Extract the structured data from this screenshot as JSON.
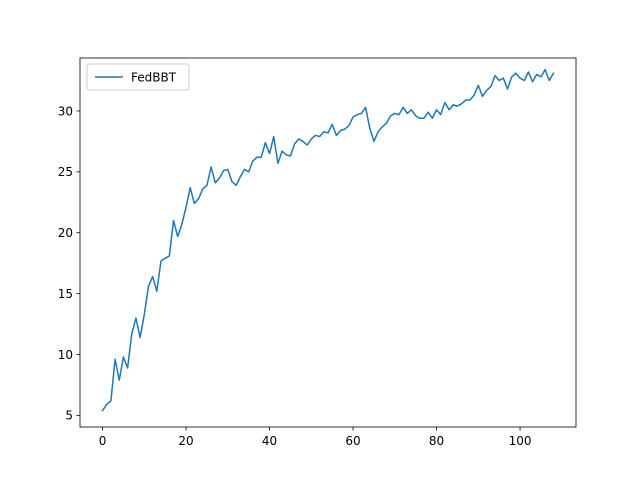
{
  "chart_data": {
    "type": "line",
    "title": "",
    "xlabel": "",
    "ylabel": "",
    "xlim": [
      -5.4,
      113.4
    ],
    "ylim": [
      4.05,
      34.35
    ],
    "xticks": [
      0,
      20,
      40,
      60,
      80,
      100
    ],
    "yticks": [
      5,
      10,
      15,
      20,
      25,
      30
    ],
    "grid": false,
    "legend": {
      "placement": "top-left",
      "entries": [
        "FedBBT"
      ]
    },
    "series": [
      {
        "name": "FedBBT",
        "color": "#1f77b4",
        "x": [
          0,
          1,
          2,
          3,
          4,
          5,
          6,
          7,
          8,
          9,
          10,
          11,
          12,
          13,
          14,
          15,
          16,
          17,
          18,
          19,
          20,
          21,
          22,
          23,
          24,
          25,
          26,
          27,
          28,
          29,
          30,
          31,
          32,
          33,
          34,
          35,
          36,
          37,
          38,
          39,
          40,
          41,
          42,
          43,
          44,
          45,
          46,
          47,
          48,
          49,
          50,
          51,
          52,
          53,
          54,
          55,
          56,
          57,
          58,
          59,
          60,
          61,
          62,
          63,
          64,
          65,
          66,
          67,
          68,
          69,
          70,
          71,
          72,
          73,
          74,
          75,
          76,
          77,
          78,
          79,
          80,
          81,
          82,
          83,
          84,
          85,
          86,
          87,
          88,
          89,
          90,
          91,
          92,
          93,
          94,
          95,
          96,
          97,
          98,
          99,
          100,
          101,
          102,
          103,
          104,
          105,
          106,
          107,
          108
        ],
        "y": [
          5.4,
          5.9,
          6.2,
          9.6,
          7.9,
          9.8,
          8.9,
          11.7,
          13.0,
          11.4,
          13.3,
          15.6,
          16.4,
          15.2,
          17.7,
          17.9,
          18.1,
          21.0,
          19.7,
          20.7,
          22.1,
          23.7,
          22.4,
          22.8,
          23.6,
          23.9,
          25.4,
          24.1,
          24.5,
          25.1,
          25.2,
          24.2,
          23.9,
          24.6,
          25.2,
          25.0,
          25.9,
          26.2,
          26.2,
          27.4,
          26.5,
          27.9,
          25.7,
          26.7,
          26.4,
          26.3,
          27.3,
          27.7,
          27.5,
          27.2,
          27.7,
          28.0,
          27.9,
          28.3,
          28.2,
          28.9,
          28.0,
          28.4,
          28.5,
          28.8,
          29.5,
          29.7,
          29.8,
          30.3,
          28.6,
          27.5,
          28.3,
          28.7,
          29.0,
          29.6,
          29.8,
          29.7,
          30.3,
          29.8,
          30.1,
          29.6,
          29.4,
          29.4,
          29.9,
          29.4,
          30.1,
          29.7,
          30.7,
          30.1,
          30.5,
          30.4,
          30.6,
          30.9,
          30.9,
          31.3,
          32.1,
          31.2,
          31.7,
          32.0,
          32.9,
          32.5,
          32.7,
          31.8,
          32.8,
          33.1,
          32.7,
          32.5,
          33.2,
          32.4,
          33.0,
          32.8,
          33.4,
          32.5,
          33.1
        ]
      }
    ]
  }
}
